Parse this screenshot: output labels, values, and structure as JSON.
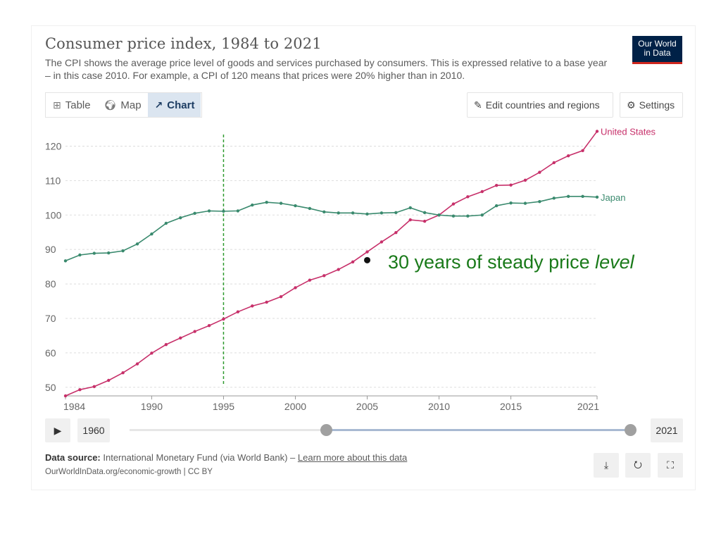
{
  "header": {
    "title": "Consumer price index, 1984 to 2021",
    "subtitle": "The CPI shows the average price level of goods and services purchased by consumers. This is expressed relative to a base year – in this case 2010. For example, a CPI of 120 means that prices were 20% higher than in 2010.",
    "logo_line1": "Our World",
    "logo_line2": "in Data"
  },
  "toolbar": {
    "tabs": [
      {
        "label": "Table",
        "icon": "table-icon"
      },
      {
        "label": "Map",
        "icon": "globe-icon"
      },
      {
        "label": "Chart",
        "icon": "line-chart-icon",
        "active": true
      }
    ],
    "edit_label": "Edit countries and regions",
    "settings_label": "Settings"
  },
  "annotation": {
    "text_main": "30 years of steady price ",
    "text_italic": "level",
    "color": "#1a7a1a",
    "marker_x": 2005,
    "marker_y": 86.9
  },
  "timeline": {
    "start_year": "1960",
    "end_year": "2021",
    "selected_start": 1984,
    "selected_end": 2021
  },
  "footer": {
    "source_label": "Data source:",
    "source_text": " International Monetary Fund (via World Bank) – ",
    "source_link": "Learn more about this data",
    "url_line": "OurWorldInData.org/economic-growth | CC BY"
  },
  "chart_data": {
    "type": "line",
    "xlim": [
      1984,
      2021
    ],
    "ylim": [
      47.5,
      125
    ],
    "x_ticks": [
      1984,
      1990,
      1995,
      2000,
      2005,
      2010,
      2015,
      2021
    ],
    "y_ticks": [
      50,
      60,
      70,
      80,
      90,
      100,
      110,
      120
    ],
    "grid": "horizontal-dashed",
    "reference_line": {
      "x": 1995,
      "color": "#2e9a2e",
      "style": "dashed"
    },
    "x": [
      1984,
      1985,
      1986,
      1987,
      1988,
      1989,
      1990,
      1991,
      1992,
      1993,
      1994,
      1995,
      1996,
      1997,
      1998,
      1999,
      2000,
      2001,
      2002,
      2003,
      2004,
      2005,
      2006,
      2007,
      2008,
      2009,
      2010,
      2011,
      2012,
      2013,
      2014,
      2015,
      2016,
      2017,
      2018,
      2019,
      2020,
      2021
    ],
    "series": [
      {
        "name": "United States",
        "color": "#c7306a",
        "values": [
          47.5,
          49.3,
          50.2,
          52.0,
          54.2,
          56.8,
          59.9,
          62.4,
          64.3,
          66.2,
          67.9,
          69.8,
          71.9,
          73.6,
          74.7,
          76.3,
          78.9,
          81.1,
          82.4,
          84.2,
          86.4,
          89.3,
          92.2,
          94.9,
          98.6,
          98.2,
          100.0,
          103.2,
          105.3,
          106.8,
          108.6,
          108.7,
          110.1,
          112.4,
          115.2,
          117.2,
          118.7,
          124.3
        ]
      },
      {
        "name": "Japan",
        "color": "#3a8a6e",
        "values": [
          86.7,
          88.4,
          88.9,
          89.0,
          89.6,
          91.6,
          94.5,
          97.6,
          99.2,
          100.5,
          101.2,
          101.1,
          101.2,
          102.9,
          103.7,
          103.4,
          102.7,
          101.9,
          100.9,
          100.6,
          100.6,
          100.3,
          100.6,
          100.7,
          102.1,
          100.7,
          100.0,
          99.7,
          99.7,
          100.0,
          102.7,
          103.5,
          103.4,
          103.9,
          104.9,
          105.4,
          105.4,
          105.2
        ]
      }
    ]
  }
}
